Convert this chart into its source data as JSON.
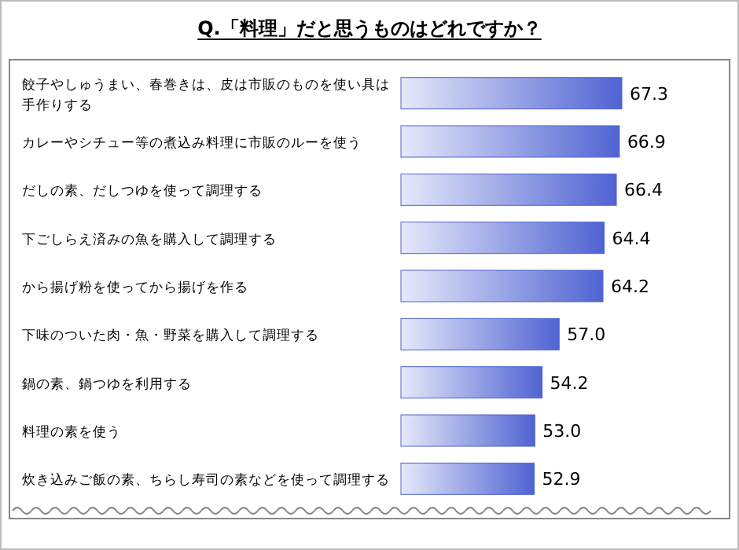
{
  "chart_data": {
    "type": "bar",
    "orientation": "horizontal",
    "title": "Q.「料理」だと思うものはどれですか？",
    "categories": [
      "餃子やしゅうまい、春巻きは、皮は市販のものを使い具は手作りする",
      "カレーやシチュー等の煮込み料理に市販のルーを使う",
      "だしの素、だしつゆを使って調理する",
      "下ごしらえ済みの魚を購入して調理する",
      "から揚げ粉を使ってから揚げを作る",
      "下味のついた肉・魚・野菜を購入して調理する",
      "鍋の素、鍋つゆを利用する",
      "料理の素を使う",
      "炊き込みご飯の素、ちらし寿司の素などを使って調理する"
    ],
    "values": [
      67.3,
      66.9,
      66.4,
      64.4,
      64.2,
      57.0,
      54.2,
      53.0,
      52.9
    ],
    "value_labels": [
      "67.3",
      "66.9",
      "66.4",
      "64.4",
      "64.2",
      "57.0",
      "54.2",
      "53.0",
      "52.9"
    ],
    "color": "#4f63d2",
    "xlim": [
      31,
      85
    ],
    "tick_labels": "y"
  }
}
